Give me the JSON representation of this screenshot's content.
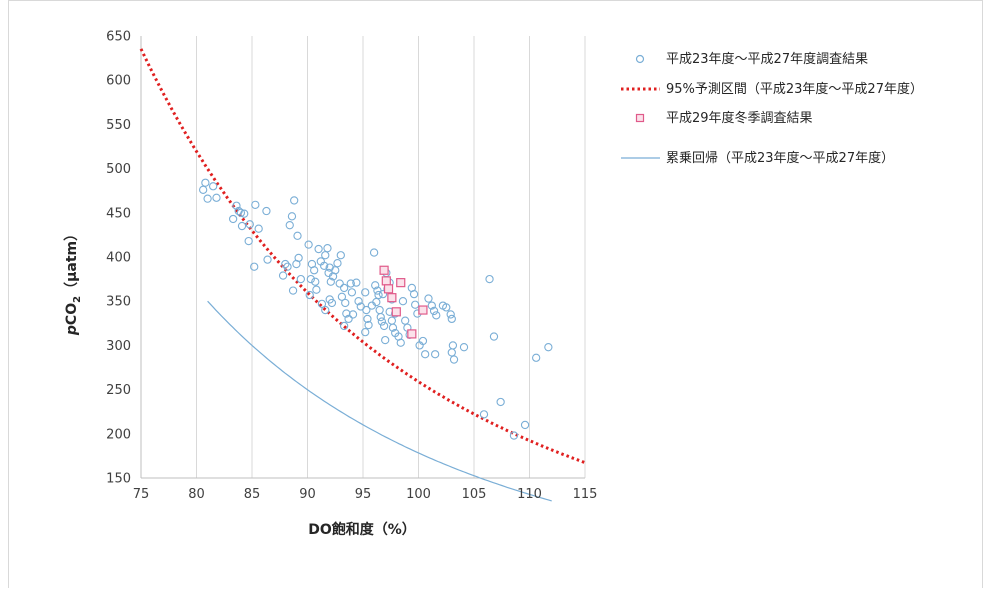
{
  "chart_data": {
    "type": "scatter",
    "xlabel": "DO飽和度（%）",
    "ylabel": {
      "italic": "p",
      "main": "CO",
      "sub": "2",
      "unit": "（μatm）"
    },
    "xlim": [
      75,
      115
    ],
    "ylim": [
      150,
      650
    ],
    "xticks": [
      "75",
      "80",
      "85",
      "90",
      "95",
      "100",
      "105",
      "110",
      "115"
    ],
    "yticks": [
      "150",
      "200",
      "250",
      "300",
      "350",
      "400",
      "450",
      "500",
      "550",
      "600",
      "650"
    ],
    "grid": "vertical",
    "legend_position": "right",
    "legend": [
      {
        "label": "平成23年度〜平成27年度調査結果",
        "marker": "circle",
        "color": "#7aaed6"
      },
      {
        "label": "95%予測区間（平成23年度〜平成27年度）",
        "marker": "dotted-line",
        "color": "#e02020"
      },
      {
        "label": "平成29年度冬季調査結果",
        "marker": "square",
        "color": "#e05a8a"
      },
      {
        "label": "累乗回帰（平成23年度〜平成27年度）",
        "marker": "line",
        "color": "#7aaed6"
      }
    ],
    "series": [
      {
        "name": "平成23年度〜平成27年度調査結果",
        "points": [
          [
            80.8,
            484
          ],
          [
            81.5,
            480
          ],
          [
            80.6,
            476
          ],
          [
            81.0,
            466
          ],
          [
            81.8,
            467
          ],
          [
            83.3,
            443
          ],
          [
            83.6,
            458
          ],
          [
            83.8,
            452
          ],
          [
            84.0,
            450
          ],
          [
            84.3,
            449
          ],
          [
            84.1,
            435
          ],
          [
            84.8,
            437
          ],
          [
            84.7,
            418
          ],
          [
            85.3,
            459
          ],
          [
            85.6,
            432
          ],
          [
            86.3,
            452
          ],
          [
            85.2,
            389
          ],
          [
            86.4,
            397
          ],
          [
            87.8,
            379
          ],
          [
            88.2,
            389
          ],
          [
            88.0,
            392
          ],
          [
            88.4,
            436
          ],
          [
            88.6,
            446
          ],
          [
            88.8,
            464
          ],
          [
            89.1,
            424
          ],
          [
            89.2,
            399
          ],
          [
            89.0,
            392
          ],
          [
            89.4,
            375
          ],
          [
            88.7,
            362
          ],
          [
            90.1,
            414
          ],
          [
            90.4,
            392
          ],
          [
            90.6,
            385
          ],
          [
            90.3,
            375
          ],
          [
            90.7,
            372
          ],
          [
            90.2,
            357
          ],
          [
            90.8,
            363
          ],
          [
            91.0,
            409
          ],
          [
            91.2,
            395
          ],
          [
            91.5,
            390
          ],
          [
            91.8,
            410
          ],
          [
            91.6,
            402
          ],
          [
            92.0,
            388
          ],
          [
            91.9,
            382
          ],
          [
            92.3,
            378
          ],
          [
            92.1,
            372
          ],
          [
            92.0,
            352
          ],
          [
            92.2,
            348
          ],
          [
            91.6,
            340
          ],
          [
            91.3,
            347
          ],
          [
            93.0,
            402
          ],
          [
            92.7,
            393
          ],
          [
            92.5,
            385
          ],
          [
            92.9,
            370
          ],
          [
            93.3,
            365
          ],
          [
            93.1,
            355
          ],
          [
            93.4,
            348
          ],
          [
            93.5,
            336
          ],
          [
            93.7,
            330
          ],
          [
            93.3,
            322
          ],
          [
            93.9,
            370
          ],
          [
            94.0,
            360
          ],
          [
            94.4,
            371
          ],
          [
            94.6,
            350
          ],
          [
            94.8,
            344
          ],
          [
            94.1,
            335
          ],
          [
            95.2,
            360
          ],
          [
            95.3,
            340
          ],
          [
            95.4,
            330
          ],
          [
            95.5,
            323
          ],
          [
            95.2,
            315
          ],
          [
            95.8,
            345
          ],
          [
            96.0,
            405
          ],
          [
            96.1,
            368
          ],
          [
            96.3,
            362
          ],
          [
            96.4,
            357
          ],
          [
            96.2,
            349
          ],
          [
            96.5,
            340
          ],
          [
            96.6,
            332
          ],
          [
            96.7,
            327
          ],
          [
            96.9,
            322
          ],
          [
            96.9,
            385
          ],
          [
            97.1,
            382
          ],
          [
            97.4,
            371
          ],
          [
            97.2,
            364
          ],
          [
            96.8,
            358
          ],
          [
            97.6,
            352
          ],
          [
            97.4,
            338
          ],
          [
            97.6,
            328
          ],
          [
            97.9,
            336
          ],
          [
            97.7,
            320
          ],
          [
            97.9,
            314
          ],
          [
            98.2,
            310
          ],
          [
            98.4,
            303
          ],
          [
            98.6,
            350
          ],
          [
            98.8,
            328
          ],
          [
            99.0,
            320
          ],
          [
            99.2,
            312
          ],
          [
            99.4,
            365
          ],
          [
            99.6,
            358
          ],
          [
            99.7,
            346
          ],
          [
            99.9,
            336
          ],
          [
            100.1,
            300
          ],
          [
            100.4,
            305
          ],
          [
            100.6,
            290
          ],
          [
            100.9,
            353
          ],
          [
            101.2,
            345
          ],
          [
            101.4,
            339
          ],
          [
            101.6,
            334
          ],
          [
            101.5,
            290
          ],
          [
            102.2,
            345
          ],
          [
            102.5,
            343
          ],
          [
            102.9,
            335
          ],
          [
            103.0,
            330
          ],
          [
            103.1,
            300
          ],
          [
            103.0,
            292
          ],
          [
            103.2,
            284
          ],
          [
            104.1,
            298
          ],
          [
            105.9,
            222
          ],
          [
            106.4,
            375
          ],
          [
            106.8,
            310
          ],
          [
            107.4,
            236
          ],
          [
            108.6,
            198
          ],
          [
            109.6,
            210
          ],
          [
            110.6,
            286
          ],
          [
            111.7,
            298
          ],
          [
            97.0,
            306
          ]
        ]
      },
      {
        "name": "平成29年度冬季調査結果",
        "points": [
          [
            96.9,
            385
          ],
          [
            97.1,
            373
          ],
          [
            97.3,
            364
          ],
          [
            97.6,
            354
          ],
          [
            98.0,
            338
          ],
          [
            98.4,
            371
          ],
          [
            99.4,
            313
          ],
          [
            100.4,
            340
          ]
        ]
      },
      {
        "name": "95%予測区間（平成23年度〜平成27年度）",
        "curve": {
          "type": "power",
          "a": 450000000.0,
          "b": -3.12,
          "x_range": [
            75,
            115
          ]
        }
      },
      {
        "name": "累乗回帰（平成23年度〜平成27年度）",
        "curve": {
          "type": "power",
          "a": 448000000.0,
          "b": -3.2,
          "x_range": [
            81,
            112
          ]
        }
      }
    ]
  }
}
